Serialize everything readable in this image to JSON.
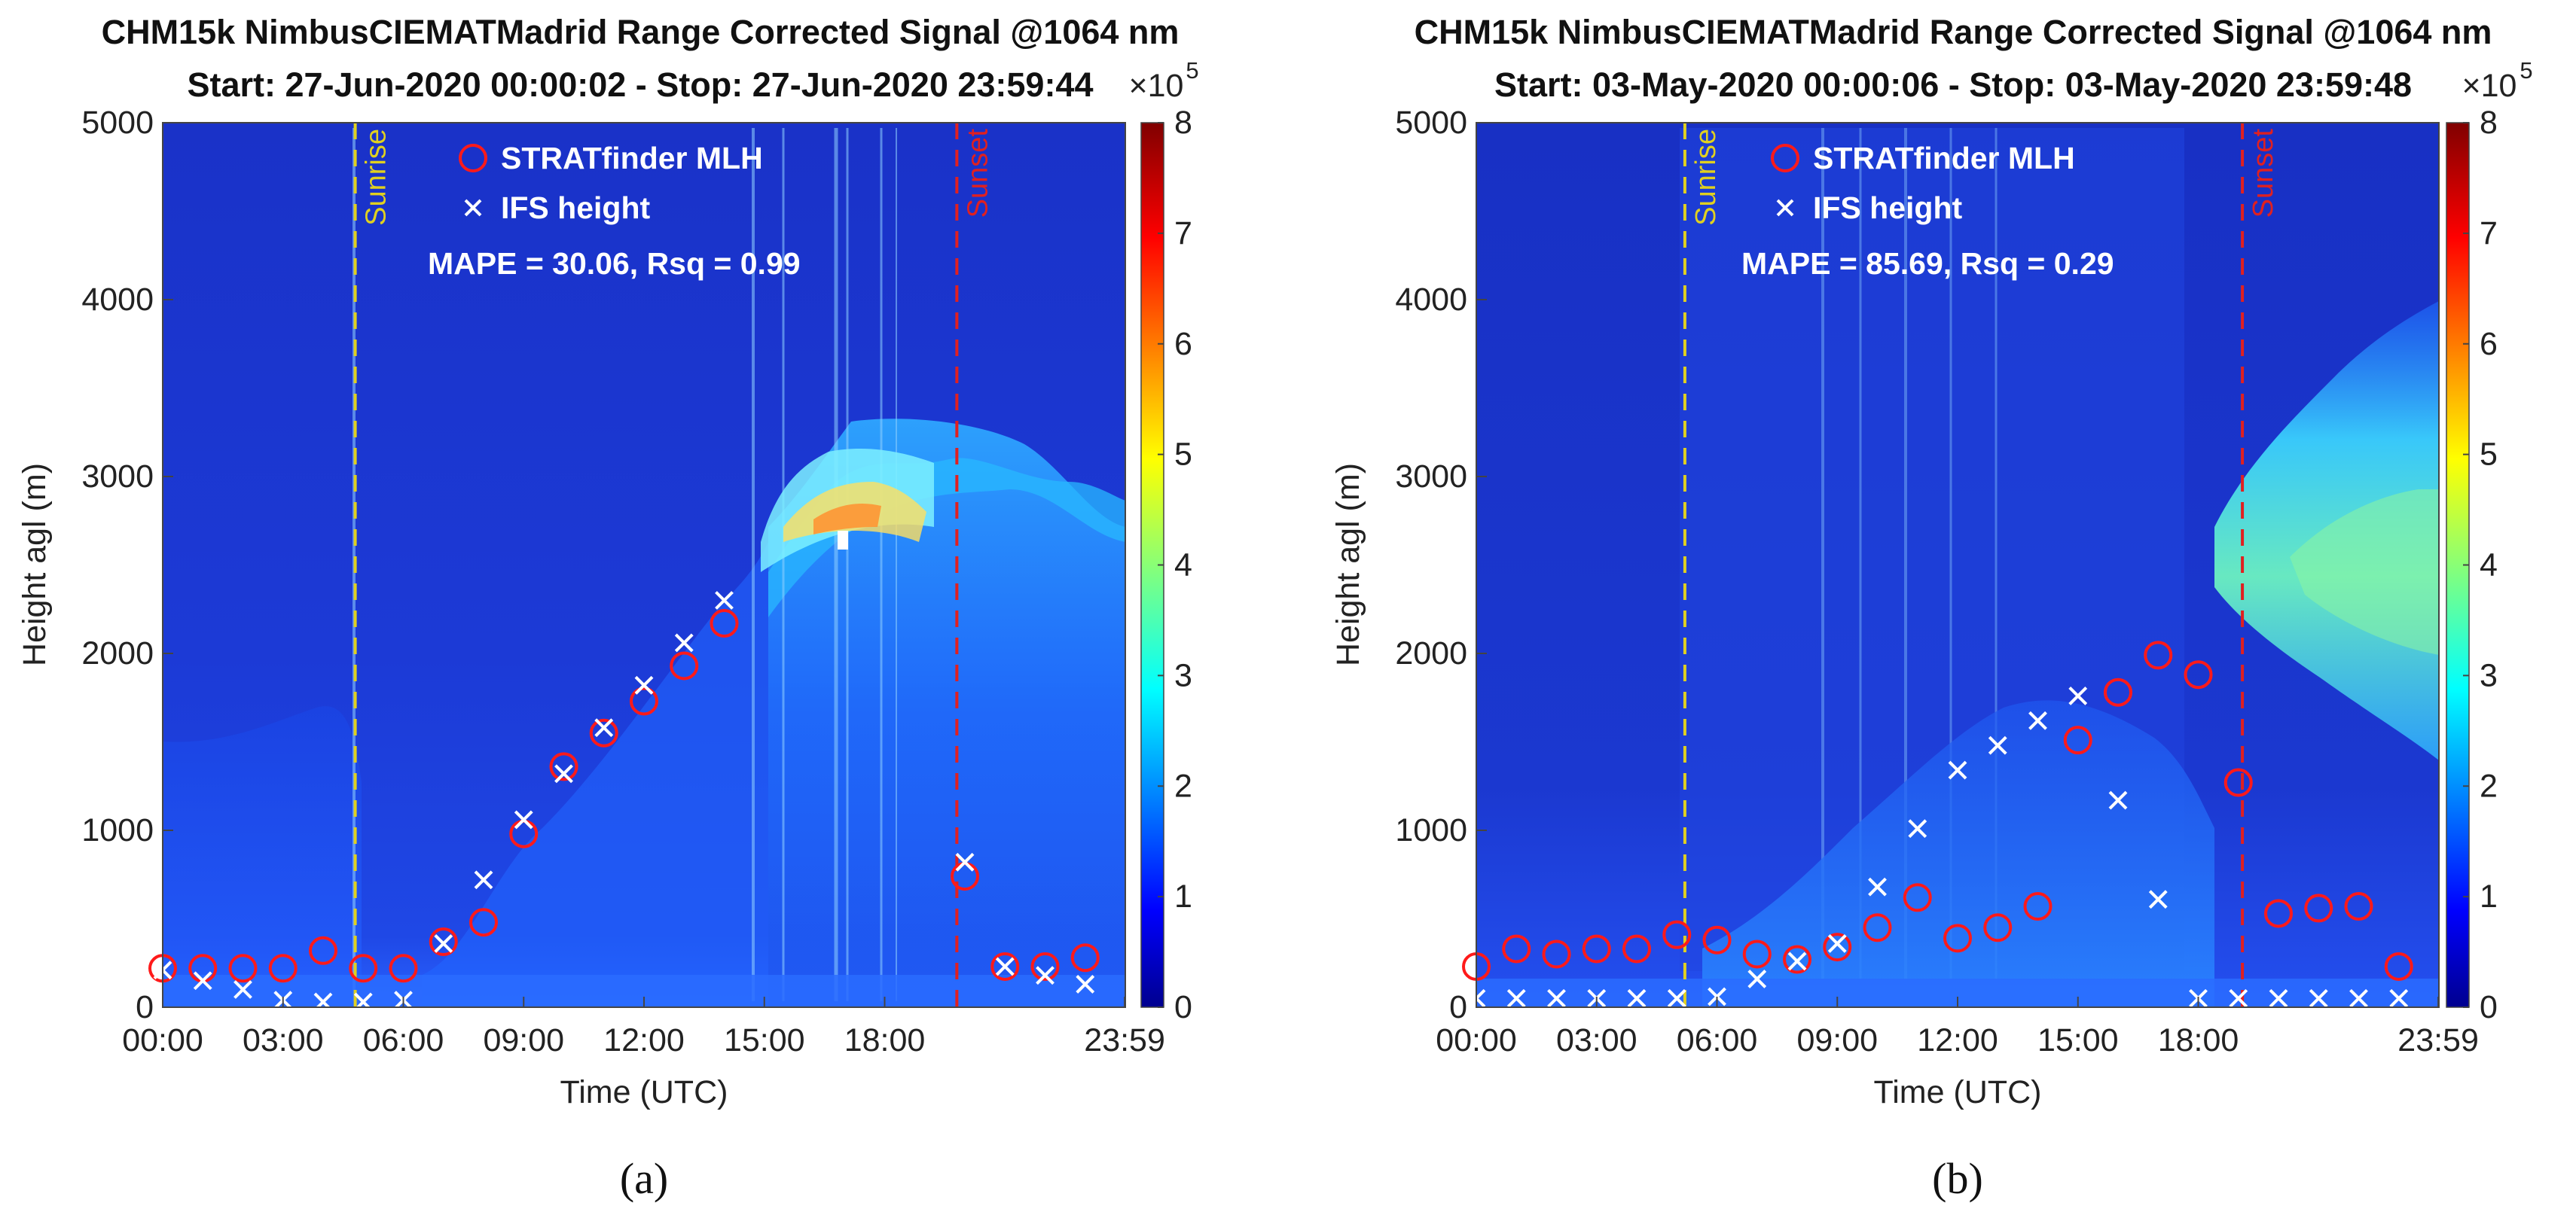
{
  "colors": {
    "mlh_marker": "#ff1a1a",
    "ifs_marker": "#ffffff",
    "sunrise": "#e0d020",
    "sunset": "#e02020",
    "background": "#1a30c0"
  },
  "chart_data": [
    {
      "panel": "a",
      "type": "heatmap",
      "title_line1": "CHM15k NimbusCIEMATMadrid Range Corrected Signal @1064 nm",
      "title_line2": "Start: 27-Jun-2020 00:00:02 - Stop: 27-Jun-2020 23:59:44",
      "xlabel": "Time (UTC)",
      "ylabel": "Height agl (m)",
      "xlim": [
        0,
        24
      ],
      "ylim": [
        0,
        5000
      ],
      "yticks": [
        0,
        1000,
        2000,
        3000,
        4000,
        5000
      ],
      "xtick_values": [
        0,
        3,
        6,
        9,
        12,
        15,
        18,
        23.983
      ],
      "xtick_labels": [
        "00:00",
        "03:00",
        "06:00",
        "09:00",
        "12:00",
        "15:00",
        "18:00",
        "23:59"
      ],
      "colorbar": {
        "min": 0,
        "max": 8,
        "ticks": [
          0,
          1,
          2,
          3,
          4,
          5,
          6,
          7,
          8
        ],
        "exponent_base": "×10",
        "exponent_power": "5"
      },
      "sunrise": {
        "label": "Sunrise",
        "time": 4.8
      },
      "sunset": {
        "label": "Sunset",
        "time": 19.8
      },
      "legend": {
        "mlh_label": "STRATfinder MLH",
        "ifs_label": "IFS height"
      },
      "stats_text": "MAPE = 30.06, Rsq =  0.99",
      "series": [
        {
          "name": "STRATfinder MLH",
          "marker": "circle",
          "x": [
            0,
            1,
            2,
            3,
            4,
            5,
            6,
            7,
            8,
            9,
            10,
            11,
            12,
            13,
            14,
            20,
            21,
            22,
            23
          ],
          "y": [
            220,
            220,
            220,
            220,
            320,
            220,
            220,
            370,
            480,
            980,
            1360,
            1550,
            1730,
            1930,
            2170,
            740,
            230,
            230,
            280
          ]
        },
        {
          "name": "IFS height",
          "marker": "x",
          "x": [
            0,
            1,
            2,
            3,
            4,
            5,
            6,
            7,
            8,
            9,
            10,
            11,
            12,
            13,
            14,
            20,
            21,
            22,
            23
          ],
          "y": [
            210,
            150,
            100,
            40,
            30,
            30,
            40,
            360,
            720,
            1060,
            1320,
            1580,
            1820,
            2060,
            2300,
            820,
            230,
            180,
            130
          ]
        }
      ]
    },
    {
      "panel": "b",
      "type": "heatmap",
      "title_line1": "CHM15k NimbusCIEMATMadrid Range Corrected Signal @1064 nm",
      "title_line2": "Start: 03-May-2020 00:00:06 - Stop: 03-May-2020 23:59:48",
      "xlabel": "Time (UTC)",
      "ylabel": "Height agl (m)",
      "xlim": [
        0,
        24
      ],
      "ylim": [
        0,
        5000
      ],
      "yticks": [
        0,
        1000,
        2000,
        3000,
        4000,
        5000
      ],
      "xtick_values": [
        0,
        3,
        6,
        9,
        12,
        15,
        18,
        23.983
      ],
      "xtick_labels": [
        "00:00",
        "03:00",
        "06:00",
        "09:00",
        "12:00",
        "15:00",
        "18:00",
        "23:59"
      ],
      "colorbar": {
        "min": 0,
        "max": 8,
        "ticks": [
          0,
          1,
          2,
          3,
          4,
          5,
          6,
          7,
          8
        ],
        "exponent_base": "×10",
        "exponent_power": "5"
      },
      "sunrise": {
        "label": "Sunrise",
        "time": 5.2
      },
      "sunset": {
        "label": "Sunset",
        "time": 19.1
      },
      "legend": {
        "mlh_label": "STRATfinder MLH",
        "ifs_label": "IFS height"
      },
      "stats_text": "MAPE = 85.69, Rsq =  0.29",
      "series": [
        {
          "name": "STRATfinder MLH",
          "marker": "circle",
          "x": [
            0,
            1,
            2,
            3,
            4,
            5,
            6,
            7,
            8,
            9,
            10,
            11,
            12,
            13,
            14,
            15,
            16,
            17,
            18,
            19,
            20,
            21,
            22,
            23
          ],
          "y": [
            230,
            330,
            300,
            330,
            330,
            410,
            380,
            300,
            270,
            340,
            450,
            620,
            390,
            450,
            570,
            1510,
            1780,
            1990,
            1880,
            1270,
            530,
            560,
            570,
            230
          ]
        },
        {
          "name": "IFS height",
          "marker": "x",
          "x": [
            0,
            1,
            2,
            3,
            4,
            5,
            6,
            7,
            8,
            9,
            10,
            11,
            12,
            13,
            14,
            15,
            16,
            17,
            18,
            19,
            20,
            21,
            22,
            23
          ],
          "y": [
            50,
            50,
            50,
            50,
            50,
            50,
            60,
            160,
            260,
            360,
            680,
            1010,
            1340,
            1480,
            1620,
            1760,
            1170,
            610,
            50,
            50,
            50,
            50,
            50,
            50
          ]
        }
      ]
    }
  ],
  "panel_labels": [
    "(a)",
    "(b)"
  ]
}
